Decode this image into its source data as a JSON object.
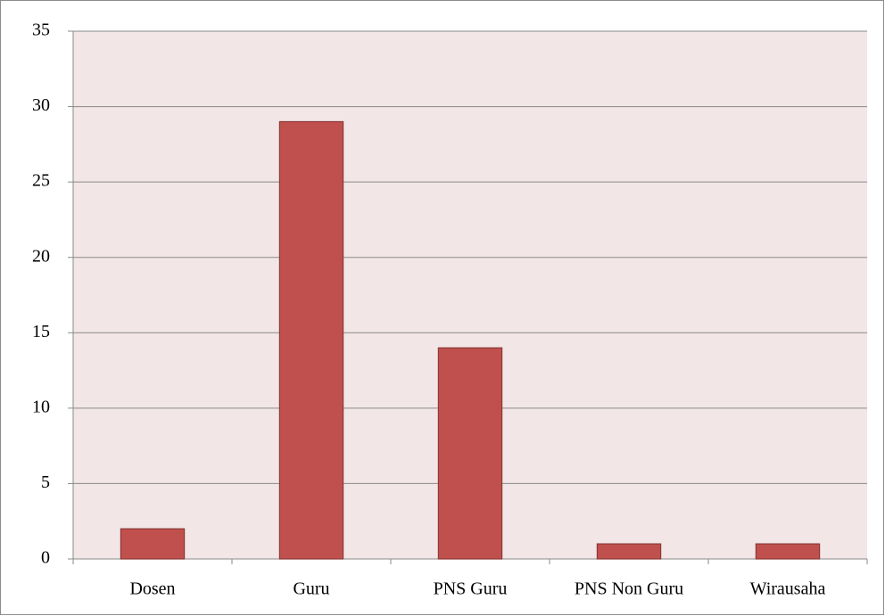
{
  "chart_data": {
    "type": "bar",
    "categories": [
      "Dosen",
      "Guru",
      "PNS Guru",
      "PNS Non Guru",
      "Wirausaha"
    ],
    "values": [
      2,
      29,
      14,
      1,
      1
    ],
    "color": "#c0504d",
    "ylim": [
      0,
      35
    ],
    "yticks": [
      0,
      5,
      10,
      15,
      20,
      25,
      30,
      35
    ],
    "grid": true
  }
}
